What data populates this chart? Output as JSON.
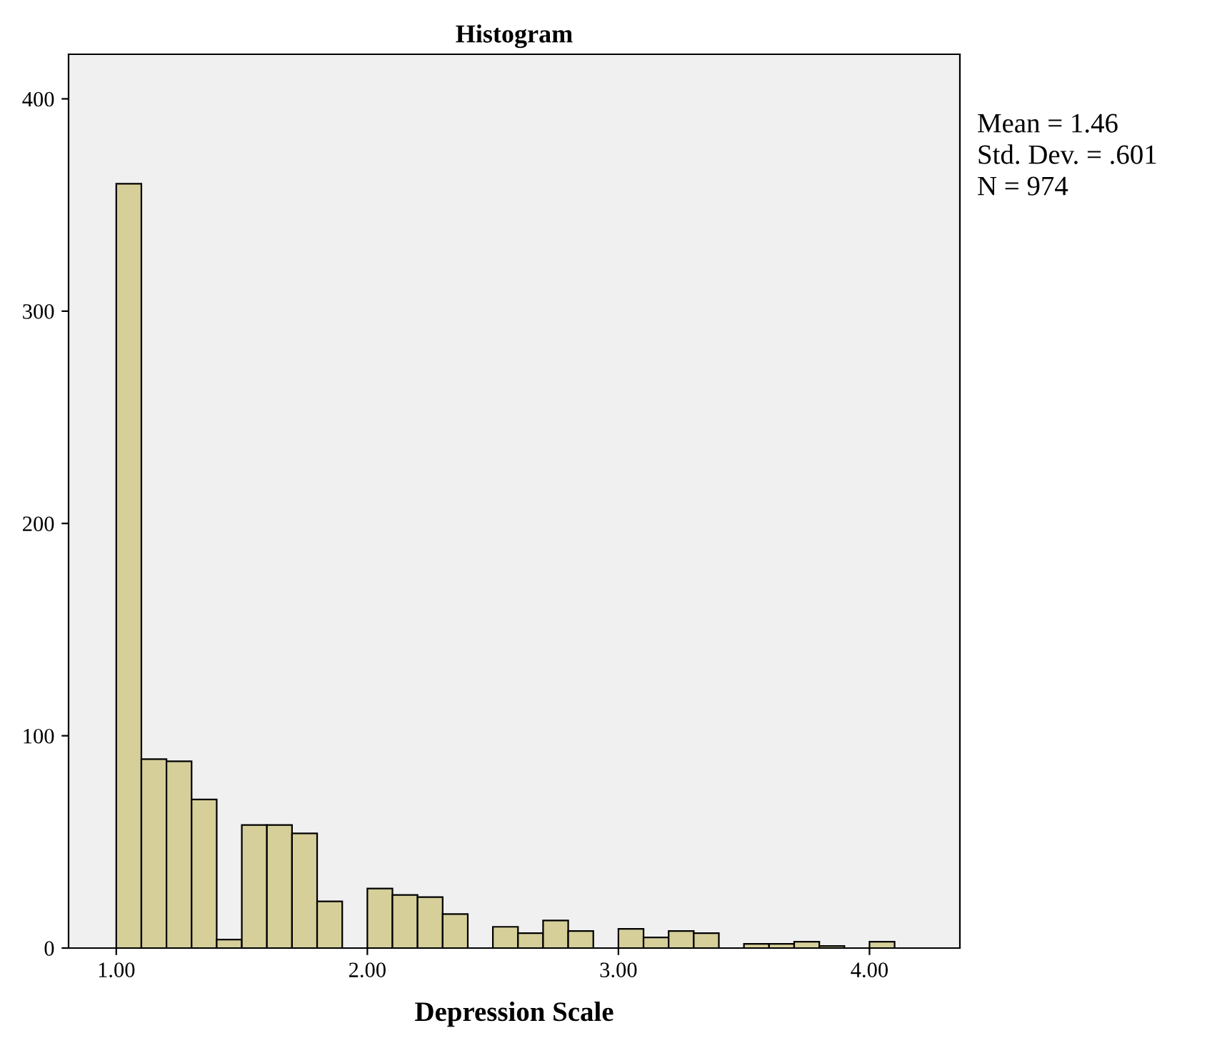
{
  "chart_data": {
    "type": "histogram",
    "title": "Histogram",
    "xlabel": "Depression Scale",
    "bins": [
      1.0,
      1.1,
      1.2,
      1.3,
      1.4,
      1.5,
      1.6,
      1.7,
      1.8,
      1.9,
      2.0,
      2.1,
      2.2,
      2.3,
      2.4,
      2.5,
      2.6,
      2.7,
      2.8,
      2.9,
      3.0,
      3.1,
      3.2,
      3.3,
      3.4,
      3.5,
      3.6,
      3.7,
      3.8,
      3.9,
      4.0,
      4.1
    ],
    "values": [
      360,
      89,
      88,
      70,
      4,
      58,
      58,
      54,
      22,
      0,
      28,
      25,
      24,
      16,
      0,
      10,
      7,
      13,
      8,
      0,
      9,
      5,
      8,
      7,
      0,
      2,
      2,
      3,
      1,
      0,
      3
    ],
    "color": "#d6cf9a",
    "xlim": [
      0.81,
      4.36
    ],
    "xticks": [
      {
        "value": 1,
        "label": "1.00"
      },
      {
        "value": 2,
        "label": "2.00"
      },
      {
        "value": 3,
        "label": "3.00"
      },
      {
        "value": 4,
        "label": "4.00"
      }
    ],
    "ylim": [
      0,
      421
    ],
    "yticks": [
      0,
      100,
      200,
      300,
      400
    ],
    "grid": false,
    "annotations": [
      "Mean = 1.46",
      "Std. Dev. = .601",
      "N = 974"
    ]
  }
}
